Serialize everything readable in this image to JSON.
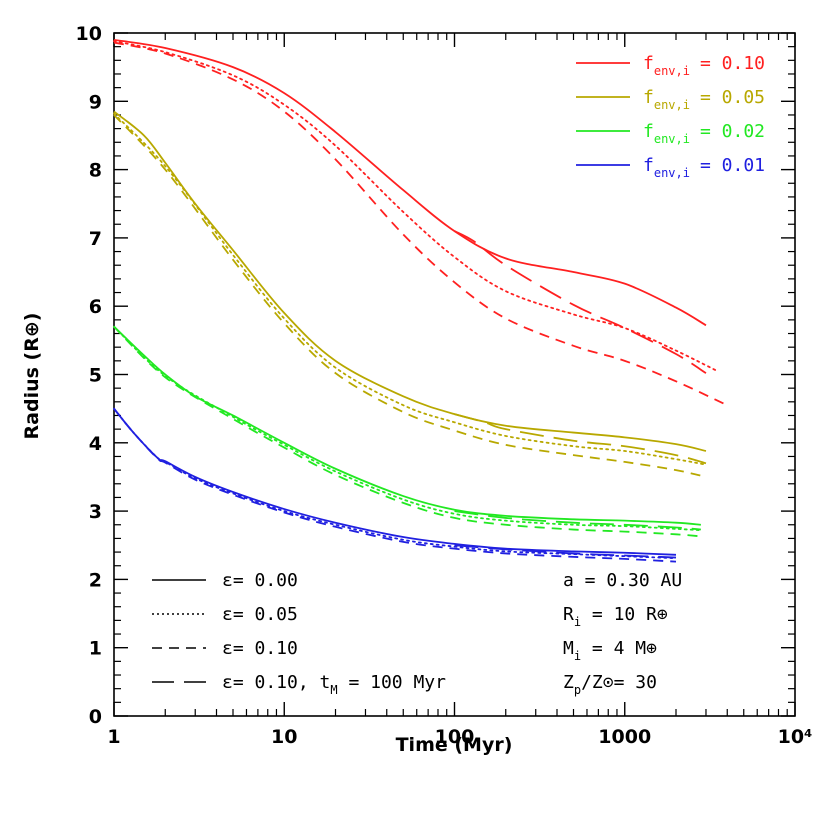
{
  "chart_data": {
    "type": "line",
    "xlabel": "Time (Myr)",
    "ylabel": "Radius (R⊕)",
    "xscale": "log",
    "xlim": [
      1,
      10000
    ],
    "ylim": [
      0,
      10
    ],
    "xticks": [
      1,
      10,
      100,
      1000,
      10000
    ],
    "xtick_labels": [
      "1",
      "10",
      "100",
      "1000",
      "10⁴"
    ],
    "yticks": [
      0,
      1,
      2,
      3,
      4,
      5,
      6,
      7,
      8,
      9,
      10
    ],
    "ytick_labels": [
      "0",
      "1",
      "2",
      "3",
      "4",
      "5",
      "6",
      "7",
      "8",
      "9",
      "10"
    ],
    "colors": {
      "0.10": "#ff2020",
      "0.05": "#b8a800",
      "0.02": "#22e822",
      "0.01": "#2020e0"
    },
    "color_legend": [
      {
        "label": "f",
        "sub": "env,i",
        "value": "= 0.10",
        "color": "#ff2020"
      },
      {
        "label": "f",
        "sub": "env,i",
        "value": "= 0.05",
        "color": "#b8a800"
      },
      {
        "label": "f",
        "sub": "env,i",
        "value": "= 0.02",
        "color": "#22e822"
      },
      {
        "label": "f",
        "sub": "env,i",
        "value": "= 0.01",
        "color": "#2020e0"
      }
    ],
    "style_legend": [
      {
        "text": "ε= 0.00",
        "dash": "solid"
      },
      {
        "text": "ε= 0.05",
        "dash": "dotted"
      },
      {
        "text": "ε= 0.10",
        "dash": "dashed"
      },
      {
        "text": "ε= 0.10, t",
        "sub": "M",
        "tail": " = 100 Myr",
        "dash": "longdash"
      }
    ],
    "params": [
      {
        "text": "a = 0.30 AU",
        "sub": "",
        "tail": ""
      },
      {
        "text": "R",
        "sub": "i",
        "tail": " = 10 R⊕"
      },
      {
        "text": "M",
        "sub": "i",
        "tail": " = 4 M⊕"
      },
      {
        "text": "Z",
        "sub": "p",
        "tail": "/Z⊙= 30"
      }
    ],
    "series": [
      {
        "group": "0.10",
        "style": "solid",
        "x": [
          1,
          2,
          5,
          10,
          20,
          50,
          100,
          200,
          500,
          1000,
          2000,
          3000
        ],
        "y": [
          9.9,
          9.78,
          9.5,
          9.12,
          8.55,
          7.7,
          7.1,
          6.7,
          6.5,
          6.33,
          5.98,
          5.72
        ]
      },
      {
        "group": "0.10",
        "style": "dotted",
        "x": [
          1,
          2,
          5,
          10,
          20,
          50,
          100,
          200,
          500,
          1000,
          2000,
          3500
        ],
        "y": [
          9.88,
          9.72,
          9.38,
          8.95,
          8.35,
          7.38,
          6.72,
          6.22,
          5.88,
          5.68,
          5.35,
          5.05
        ]
      },
      {
        "group": "0.10",
        "style": "dashed",
        "x": [
          1,
          2,
          5,
          10,
          20,
          50,
          100,
          200,
          500,
          1000,
          2000,
          4000
        ],
        "y": [
          9.86,
          9.7,
          9.32,
          8.85,
          8.15,
          7.05,
          6.35,
          5.82,
          5.42,
          5.2,
          4.9,
          4.55
        ]
      },
      {
        "group": "0.10",
        "style": "longdash",
        "x": [
          100,
          130,
          200,
          500,
          1000,
          2000,
          3000
        ],
        "y": [
          7.1,
          6.95,
          6.6,
          6.02,
          5.68,
          5.3,
          5.02
        ]
      },
      {
        "group": "0.05",
        "style": "solid",
        "x": [
          1,
          1.5,
          2,
          3,
          5,
          10,
          20,
          50,
          100,
          200,
          500,
          1000,
          2000,
          3000
        ],
        "y": [
          8.85,
          8.5,
          8.1,
          7.5,
          6.82,
          5.9,
          5.2,
          4.68,
          4.42,
          4.25,
          4.15,
          4.08,
          3.98,
          3.88
        ]
      },
      {
        "group": "0.05",
        "style": "dotted",
        "x": [
          1,
          2,
          5,
          10,
          20,
          50,
          100,
          200,
          500,
          1000,
          2000,
          3000
        ],
        "y": [
          8.82,
          8.05,
          6.75,
          5.82,
          5.1,
          4.55,
          4.3,
          4.1,
          3.95,
          3.88,
          3.76,
          3.68
        ]
      },
      {
        "group": "0.05",
        "style": "dashed",
        "x": [
          1,
          2,
          5,
          10,
          20,
          50,
          100,
          200,
          500,
          1000,
          2000,
          3000
        ],
        "y": [
          8.8,
          8.0,
          6.68,
          5.75,
          5.02,
          4.45,
          4.18,
          3.97,
          3.82,
          3.72,
          3.6,
          3.5
        ]
      },
      {
        "group": "0.05",
        "style": "longdash",
        "x": [
          100,
          150,
          200,
          500,
          1000,
          2000,
          3000
        ],
        "y": [
          4.42,
          4.3,
          4.2,
          4.03,
          3.95,
          3.82,
          3.7
        ]
      },
      {
        "group": "0.02",
        "style": "solid",
        "x": [
          1,
          1.5,
          2,
          3,
          5,
          10,
          20,
          50,
          100,
          200,
          500,
          1000,
          2000,
          2800
        ],
        "y": [
          5.7,
          5.28,
          5.0,
          4.68,
          4.4,
          4.0,
          3.62,
          3.22,
          3.02,
          2.93,
          2.88,
          2.86,
          2.83,
          2.8
        ]
      },
      {
        "group": "0.02",
        "style": "dotted",
        "x": [
          1,
          2,
          5,
          10,
          20,
          50,
          100,
          200,
          500,
          1000,
          2000,
          2800
        ],
        "y": [
          5.7,
          4.98,
          4.38,
          3.97,
          3.58,
          3.17,
          2.96,
          2.86,
          2.8,
          2.78,
          2.74,
          2.72
        ]
      },
      {
        "group": "0.02",
        "style": "dashed",
        "x": [
          1,
          2,
          5,
          10,
          20,
          50,
          100,
          200,
          500,
          1000,
          2000,
          2800
        ],
        "y": [
          5.7,
          4.96,
          4.35,
          3.93,
          3.53,
          3.12,
          2.9,
          2.8,
          2.73,
          2.7,
          2.66,
          2.63
        ]
      },
      {
        "group": "0.02",
        "style": "longdash",
        "x": [
          100,
          200,
          500,
          1000,
          2000,
          2800
        ],
        "y": [
          3.0,
          2.9,
          2.83,
          2.8,
          2.76,
          2.73
        ]
      },
      {
        "group": "0.01",
        "style": "solid",
        "x": [
          1,
          1.3,
          1.8,
          2,
          3,
          5,
          10,
          20,
          50,
          100,
          200,
          500,
          1000,
          2000
        ],
        "y": [
          4.5,
          4.15,
          3.78,
          3.73,
          3.5,
          3.28,
          3.03,
          2.83,
          2.62,
          2.52,
          2.45,
          2.41,
          2.39,
          2.36
        ]
      },
      {
        "group": "0.01",
        "style": "dotted",
        "x": [
          1,
          1.3,
          1.8,
          2,
          3,
          5,
          10,
          20,
          50,
          100,
          200,
          500,
          1000,
          2000
        ],
        "y": [
          4.5,
          4.15,
          3.78,
          3.72,
          3.48,
          3.26,
          3.0,
          2.8,
          2.58,
          2.48,
          2.41,
          2.37,
          2.34,
          2.31
        ]
      },
      {
        "group": "0.01",
        "style": "dashed",
        "x": [
          1,
          1.3,
          1.8,
          2,
          3,
          5,
          10,
          20,
          50,
          100,
          200,
          500,
          1000,
          2000
        ],
        "y": [
          4.5,
          4.15,
          3.77,
          3.71,
          3.46,
          3.24,
          2.98,
          2.77,
          2.55,
          2.45,
          2.38,
          2.33,
          2.3,
          2.26
        ]
      },
      {
        "group": "0.01",
        "style": "longdash",
        "x": [
          100,
          200,
          500,
          1000,
          2000
        ],
        "y": [
          2.5,
          2.44,
          2.38,
          2.35,
          2.32
        ]
      }
    ]
  }
}
